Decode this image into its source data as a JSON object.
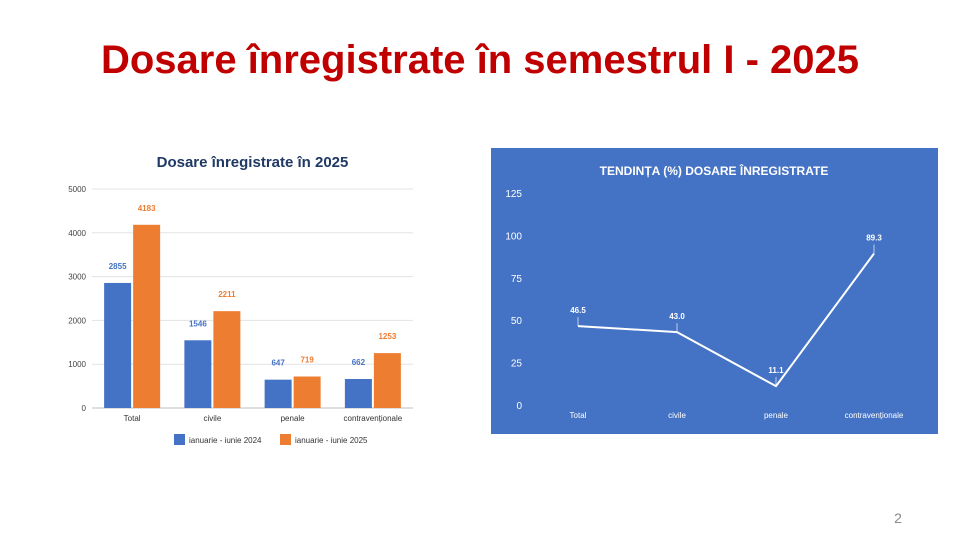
{
  "slide": {
    "title": "Dosare înregistrate în semestrul I - 2025",
    "page_number": "2"
  },
  "colors": {
    "title": "#c00000",
    "series_2024": "#4472c4",
    "series_2025": "#ed7d31",
    "trend_background": "#4472c4",
    "trend_line": "#ffffff"
  },
  "chart_data": [
    {
      "type": "bar",
      "title": "Dosare înregistrate în 2025",
      "categories": [
        "Total",
        "civile",
        "penale",
        "contravenționale"
      ],
      "series": [
        {
          "name": "ianuarie - iunie 2024",
          "values": [
            2855,
            1546,
            647,
            662
          ],
          "labels": [
            "2855",
            "1546",
            "647",
            "662"
          ]
        },
        {
          "name": "ianuarie - iunie 2025",
          "values": [
            4183,
            2211,
            719,
            1253
          ],
          "labels": [
            "4183",
            "2211",
            "719",
            "1253"
          ]
        }
      ],
      "yticks": [
        "0",
        "1000",
        "2000",
        "3000",
        "4000",
        "5000"
      ],
      "ylim": [
        0,
        5000
      ],
      "grid": true,
      "legend": "bottom"
    },
    {
      "type": "line",
      "title": "TENDINȚA (%) DOSARE ÎNREGISTRATE",
      "categories": [
        "Total",
        "civile",
        "penale",
        "contravenționale"
      ],
      "series": [
        {
          "values": [
            46.5,
            43.0,
            11.1,
            89.3
          ],
          "labels": [
            "46.5",
            "43.0",
            "11.1",
            "89.3"
          ]
        }
      ],
      "yticks": [
        "0",
        "25",
        "50",
        "75",
        "100",
        "125"
      ],
      "ylim": [
        0,
        125
      ],
      "grid": false,
      "legend": "none"
    }
  ]
}
